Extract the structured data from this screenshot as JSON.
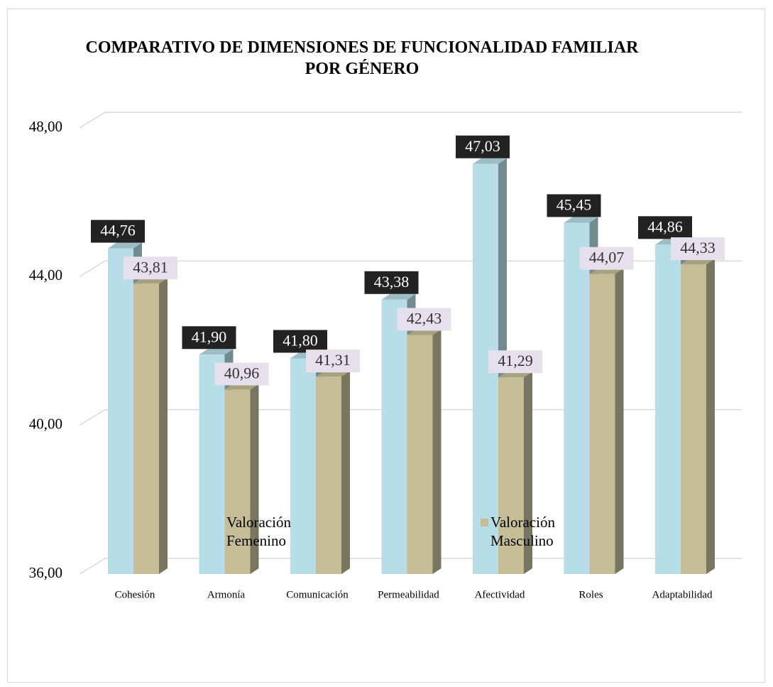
{
  "chart_data": {
    "type": "bar",
    "title": "COMPARATIVO DE DIMENSIONES DE FUNCIONALIDAD FAMILIAR POR GÉNERO",
    "categories": [
      "Cohesión",
      "Armonía",
      "Comunicación",
      "Permeabilidad",
      "Afectividad",
      "Roles",
      "Adaptabilidad"
    ],
    "series": [
      {
        "name": "Valoración Femenino",
        "color": "#b7dee8",
        "values": [
          44.76,
          41.9,
          41.8,
          43.38,
          47.03,
          45.45,
          44.86
        ],
        "value_labels": [
          "44,76",
          "41,90",
          "41,80",
          "43,38",
          "47,03",
          "45,45",
          "44,86"
        ]
      },
      {
        "name": "Valoración Masculino",
        "color": "#c4bd97",
        "values": [
          43.81,
          40.96,
          41.31,
          42.43,
          41.29,
          44.07,
          44.33
        ],
        "value_labels": [
          "43,81",
          "40,96",
          "41,31",
          "42,43",
          "41,29",
          "44,07",
          "44,33"
        ]
      }
    ],
    "ylim": [
      36,
      48
    ],
    "yticks": [
      {
        "value": 36,
        "label": "36,00"
      },
      {
        "value": 40,
        "label": "40,00"
      },
      {
        "value": 44,
        "label": "44,00"
      },
      {
        "value": 48,
        "label": "48,00"
      }
    ],
    "grid": true,
    "legend": "bottom"
  }
}
